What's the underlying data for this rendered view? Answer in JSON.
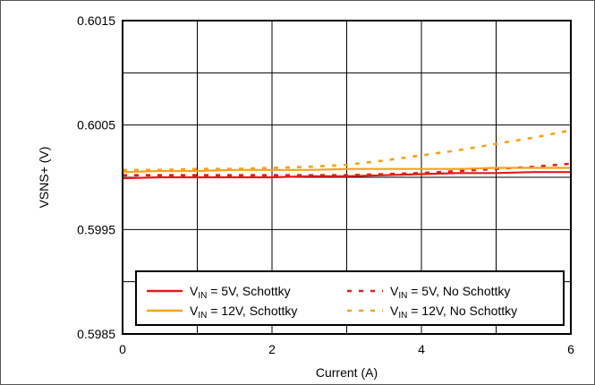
{
  "chart_data": {
    "type": "line",
    "xlabel": "Current (A)",
    "ylabel": "VSNS+ (V)",
    "xlim": [
      0,
      6
    ],
    "ylim": [
      0.5985,
      0.6015
    ],
    "x_ticks": [
      "0",
      "2",
      "4",
      "6"
    ],
    "y_ticks": [
      "0.5985",
      "0.5995",
      "0.6005",
      "0.6015"
    ],
    "x": [
      0,
      0.5,
      1,
      1.5,
      2,
      2.5,
      3,
      3.5,
      4,
      4.5,
      5,
      5.5,
      6
    ],
    "grid": true,
    "legend_position": "bottom",
    "series": [
      {
        "name": "VIN = 5V, Schottky",
        "name_main": "V",
        "name_sub": "IN",
        "name_rest": " = 5V, Schottky",
        "color": "#e41a1c",
        "style": "solid",
        "values": [
          0.59999,
          0.6,
          0.6,
          0.6,
          0.6,
          0.60001,
          0.60001,
          0.60002,
          0.60003,
          0.60004,
          0.60004,
          0.60005,
          0.60005
        ]
      },
      {
        "name": "VIN = 5V, No Schottky",
        "name_main": "V",
        "name_sub": "IN",
        "name_rest": " = 5V, No Schottky",
        "color": "#e41a1c",
        "style": "dashed",
        "values": [
          0.60002,
          0.60002,
          0.60002,
          0.60002,
          0.60002,
          0.60002,
          0.60002,
          0.60003,
          0.60004,
          0.60006,
          0.60008,
          0.6001,
          0.60013
        ]
      },
      {
        "name": "VIN = 12V, Schottky",
        "name_main": "V",
        "name_sub": "IN",
        "name_rest": " = 12V, Schottky",
        "color": "#f5a21a",
        "style": "solid",
        "values": [
          0.60005,
          0.60006,
          0.60006,
          0.60007,
          0.60007,
          0.60007,
          0.60008,
          0.60008,
          0.60008,
          0.60008,
          0.60009,
          0.60009,
          0.60009
        ]
      },
      {
        "name": "VIN = 12V, No Schottky",
        "name_main": "V",
        "name_sub": "IN",
        "name_rest": " = 12V, No Schottky",
        "color": "#f5a21a",
        "style": "dashed",
        "values": [
          0.60007,
          0.60007,
          0.60008,
          0.60008,
          0.60009,
          0.6001,
          0.60012,
          0.60016,
          0.60021,
          0.60026,
          0.60032,
          0.60038,
          0.60045
        ]
      }
    ]
  }
}
